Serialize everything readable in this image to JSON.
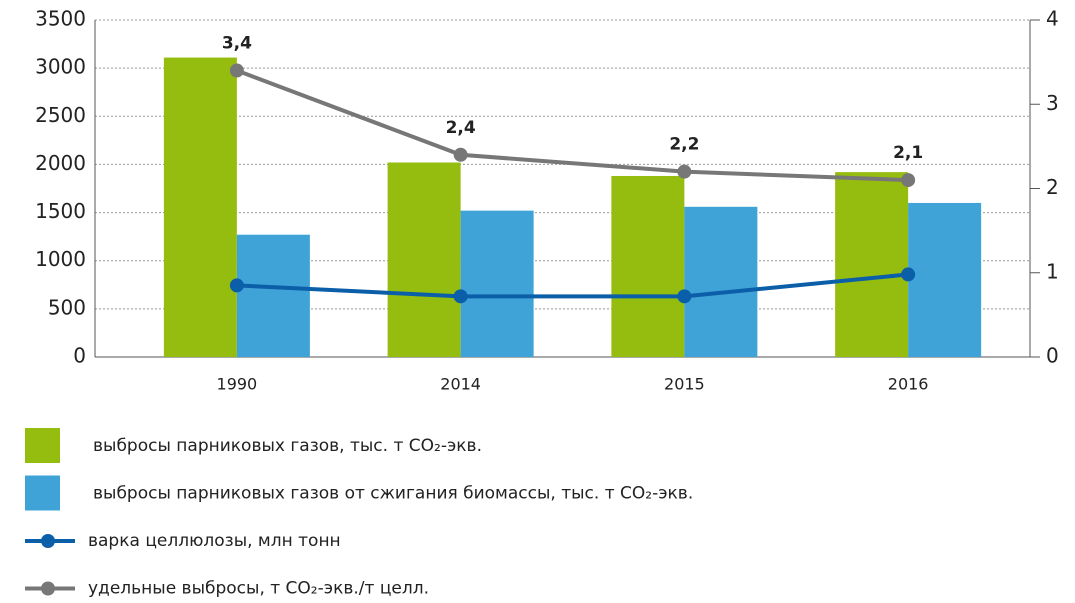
{
  "chart_data": {
    "type": "bar",
    "categories": [
      "1990",
      "2014",
      "2015",
      "2016"
    ],
    "ylim": [
      0,
      3500
    ],
    "yticks": [
      0,
      500,
      1000,
      1500,
      2000,
      2500,
      3000,
      3500
    ],
    "y2lim": [
      0,
      4
    ],
    "y2ticks": [
      0,
      1,
      2,
      3,
      4
    ],
    "grid": true,
    "series": [
      {
        "name": "выбросы парниковых газов, тыс. т CO₂-экв.",
        "type": "bar",
        "color": "#95bd0f",
        "values": [
          3110,
          2020,
          1880,
          1920
        ]
      },
      {
        "name": "выбросы парниковых газов от сжигания биомассы, тыс. т CO₂-экв.",
        "type": "bar",
        "color": "#3fa3d8",
        "values": [
          1270,
          1520,
          1560,
          1600
        ]
      },
      {
        "name": "варка целлюлозы, млн тонн",
        "type": "line",
        "axis": "y2",
        "color": "#0b5ea8",
        "values": [
          0.85,
          0.72,
          0.72,
          0.98
        ]
      },
      {
        "name": "удельные выбросы, т CO₂-экв./т целл.",
        "type": "line",
        "axis": "y2",
        "color": "#777777",
        "values": [
          3.4,
          2.4,
          2.2,
          2.1
        ],
        "value_labels": [
          "3,4",
          "2,4",
          "2,2",
          "2,1"
        ]
      }
    ]
  }
}
